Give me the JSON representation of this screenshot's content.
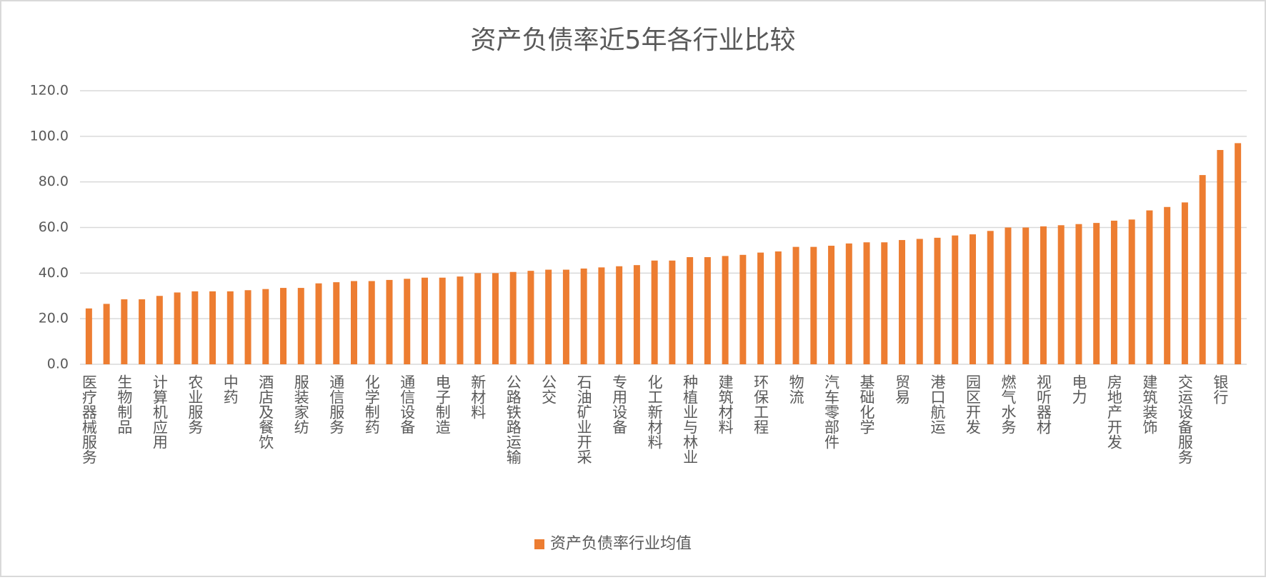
{
  "chart_data": {
    "type": "bar",
    "title": "资产负债率近5年各行业比较",
    "categories": [
      "医疗器械服务",
      null,
      "生物制品",
      null,
      "计算机应用",
      null,
      "农业服务",
      null,
      "中药",
      null,
      "酒店及餐饮",
      null,
      "服装家纺",
      null,
      "通信服务",
      null,
      "化学制药",
      null,
      "通信设备",
      null,
      "电子制造",
      null,
      "新材料",
      null,
      "公路铁路运输",
      null,
      "公交",
      null,
      "石油矿业开采",
      null,
      "专用设备",
      null,
      "化工新材料",
      null,
      "种植业与林业",
      null,
      "建筑材料",
      null,
      "环保工程",
      null,
      "物流",
      null,
      "汽车零部件",
      null,
      "基础化学",
      null,
      "贸易",
      null,
      "港口航运",
      null,
      "园区开发",
      null,
      "燃气水务",
      null,
      "视听器材",
      null,
      "电力",
      null,
      "房地产开发",
      null,
      "建筑装饰",
      null,
      "交运设备服务",
      null,
      "银行",
      null
    ],
    "series": [
      {
        "name": "资产负债率行业均值",
        "color": "#ed7d31",
        "values": [
          24.5,
          26.5,
          28.5,
          28.5,
          30,
          31.5,
          32,
          32,
          32,
          32.5,
          33,
          33.5,
          33.5,
          35.5,
          36,
          36.5,
          36.5,
          37,
          37.5,
          38,
          38,
          38.5,
          40,
          40,
          40.5,
          41,
          41.5,
          41.5,
          42,
          42.5,
          43,
          43.5,
          45.5,
          45.5,
          47,
          47,
          47.5,
          48,
          49,
          49.5,
          51.5,
          51.5,
          52,
          53,
          53.5,
          53.5,
          54.5,
          55,
          55.5,
          56.5,
          57,
          58.5,
          60,
          60,
          60.5,
          61,
          61.5,
          62,
          63,
          63.5,
          67.5,
          69,
          71,
          83,
          94,
          97
        ]
      }
    ],
    "ylim": [
      0,
      120
    ],
    "yticks": [
      {
        "value": 0,
        "label": "0.0"
      },
      {
        "value": 20,
        "label": "20.0"
      },
      {
        "value": 40,
        "label": "40.0"
      },
      {
        "value": 60,
        "label": "60.0"
      },
      {
        "value": 80,
        "label": "80.0"
      },
      {
        "value": 100,
        "label": "100.0"
      },
      {
        "value": 120,
        "label": "120.0"
      }
    ],
    "grid": true,
    "legend": "bottom"
  }
}
